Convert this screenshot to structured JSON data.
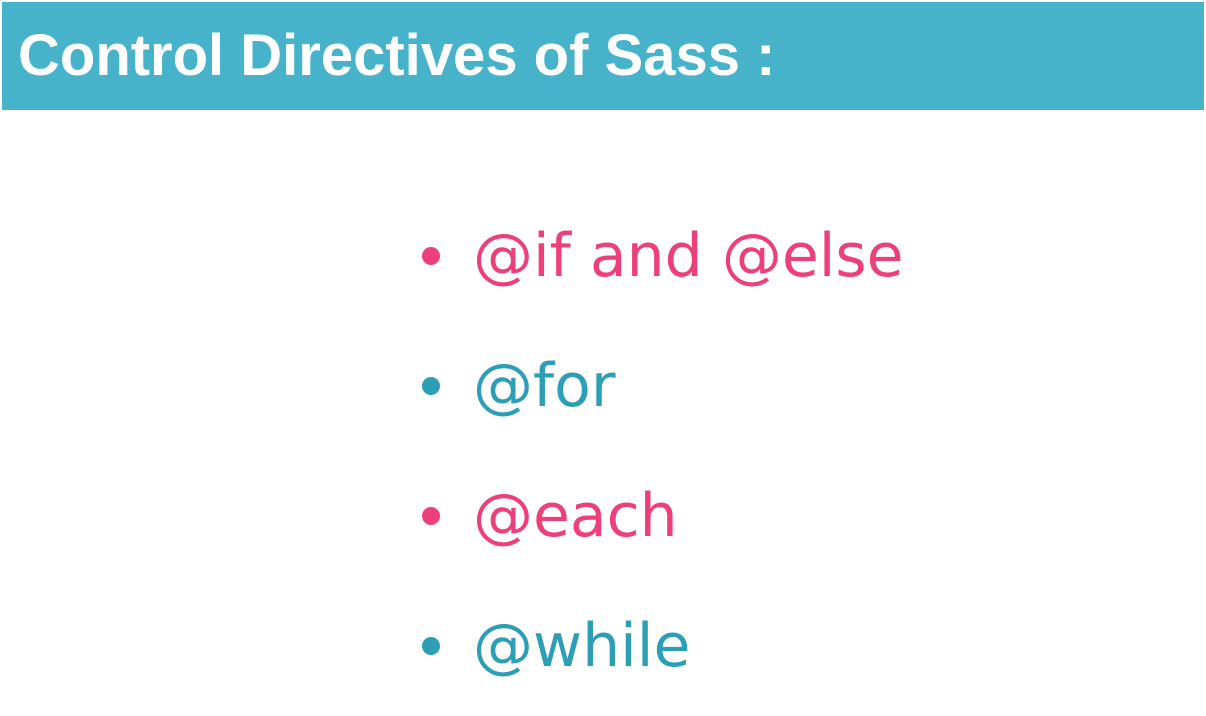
{
  "title": "Control Directives of Sass :",
  "colors": {
    "title_bar": "#46b3cb",
    "title_text": "#ffffff",
    "pink": "#ee3f7d",
    "teal": "#2c9fb6"
  },
  "items": [
    {
      "label": "@if and @else",
      "color": "#ee3f7d"
    },
    {
      "label": "@for",
      "color": "#2c9fb6"
    },
    {
      "label": "@each",
      "color": "#ee3f7d"
    },
    {
      "label": "@while",
      "color": "#2c9fb6"
    }
  ]
}
